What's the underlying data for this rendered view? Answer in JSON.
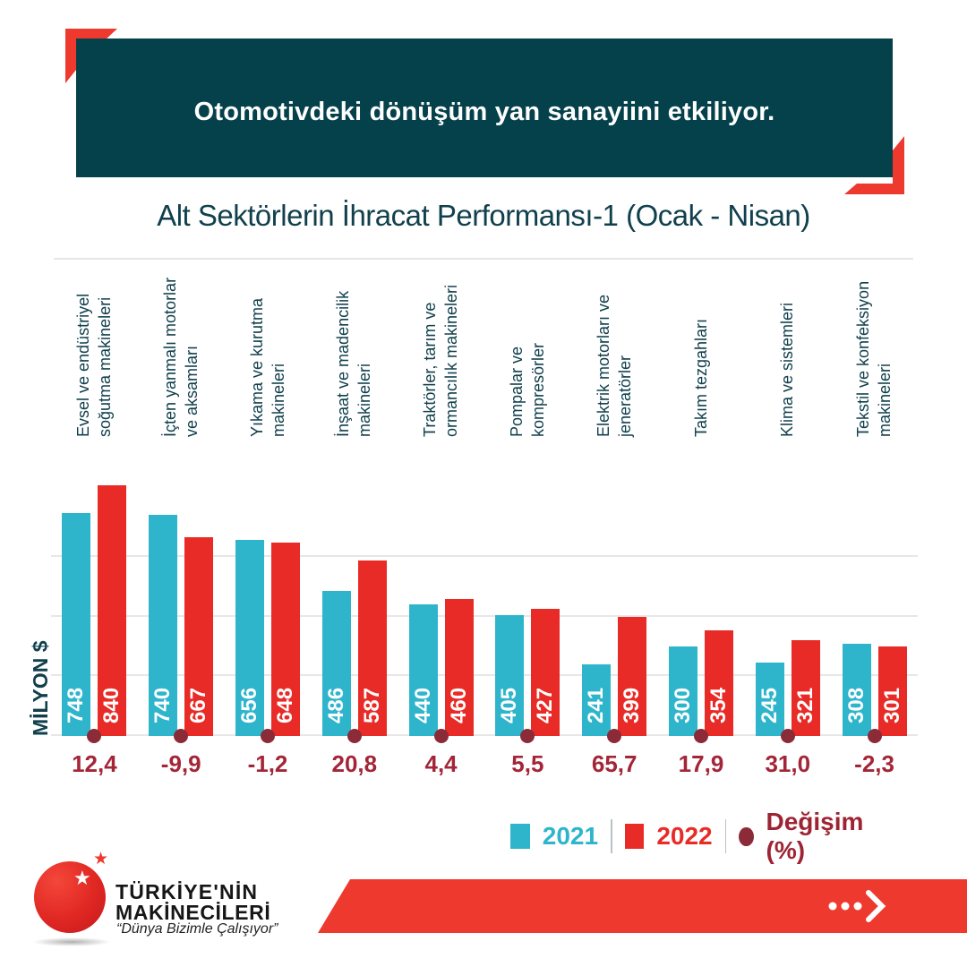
{
  "header": {
    "title": "Otomotivdeki dönüşüm yan sanayiini etkiliyor."
  },
  "subtitle": "Alt Sektörlerin İhracat Performansı-1 (Ocak - Nisan)",
  "y_axis_label": "MİLYON $",
  "chart_data": {
    "type": "bar",
    "title": "Alt Sektörlerin İhracat Performansı-1 (Ocak - Nisan)",
    "ylabel": "MİLYON $",
    "ylim": [
      0,
      840
    ],
    "gridline_step": 200,
    "grid": true,
    "legend_position": "bottom-right",
    "categories": [
      "Evsel ve endüstriyel\nsoğutma makineleri",
      "İçten yanmalı motorlar\nve aksamları",
      "Yıkama ve kurutma\nmakineleri",
      "İnşaat ve madencilik\nmakineleri",
      "Traktörler, tarım ve\normancılık makineleri",
      "Pompalar ve\nkompresörler",
      "Elektrik motorları ve\njeneratörler",
      "Takım tezgahları",
      "Klima ve sistemleri",
      "Tekstil ve konfeksiyon\nmakineleri"
    ],
    "series": [
      {
        "name": "2021",
        "color": "#2eb5cc",
        "values": [
          748,
          740,
          656,
          486,
          440,
          405,
          241,
          300,
          245,
          308
        ]
      },
      {
        "name": "2022",
        "color": "#e82b26",
        "values": [
          840,
          667,
          648,
          587,
          460,
          427,
          399,
          354,
          321,
          301
        ]
      }
    ],
    "change_percent": {
      "name": "Değişim (%)",
      "color": "#8c2b38",
      "values": [
        "12,4",
        "-9,9",
        "-1,2",
        "20,8",
        "4,4",
        "5,5",
        "65,7",
        "17,9",
        "31,0",
        "-2,3"
      ]
    }
  },
  "legend": {
    "items": [
      {
        "label": "2021",
        "swatch": "square",
        "color": "#2eb5cc",
        "label_color": "#2eb5cc"
      },
      {
        "label": "2022",
        "swatch": "square",
        "color": "#e82b26",
        "label_color": "#e82b26"
      },
      {
        "label": "Değişim (%)",
        "swatch": "circle",
        "color": "#8c2b38",
        "label_color": "#9e2433"
      }
    ]
  },
  "footer": {
    "brand_line1": "TÜRKİYE'NİN",
    "brand_line2": "MAKİNECİLERİ",
    "tagline": "“Dünya Bizimle Çalışıyor”",
    "star": "★"
  },
  "colors": {
    "header_bg": "#05414b",
    "accent_red": "#ee392f",
    "text_teal": "#11404d",
    "change_text": "#a32638"
  }
}
